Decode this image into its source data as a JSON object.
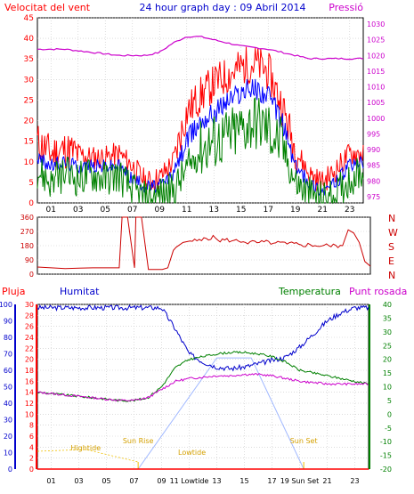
{
  "header": {
    "title": "24 hour graph day : 09 Abril 2014",
    "left_label": "Velocitat del vent",
    "right_label": "Pressió"
  },
  "bottom_header": {
    "pluja": "Pluja",
    "humitat": "Humitat",
    "temperatura": "Temperatura",
    "punt_rosada": "Punt rosada"
  },
  "colors": {
    "wind_max": "#ff0000",
    "wind_avg": "#0000ff",
    "wind_min": "#008000",
    "pressure": "#cc00cc",
    "humidity": "#0000cc",
    "temperature": "#008000",
    "dewpoint": "#cc00cc",
    "rain": "#ff0000",
    "direction": "#cc0000",
    "sun": "#a0b8ff",
    "tide": "#f0c000",
    "grid": "#c8c8c8"
  },
  "chart_data": [
    {
      "type": "line",
      "name": "wind-pressure",
      "x_ticks": [
        "01",
        "03",
        "05",
        "07",
        "09",
        "11",
        "13",
        "15",
        "17",
        "19",
        "21",
        "23"
      ],
      "left_axis": {
        "ticks": [
          0,
          5,
          10,
          15,
          20,
          25,
          30,
          35,
          40,
          45
        ],
        "ylim": [
          0,
          45
        ]
      },
      "right_axis": {
        "ticks": [
          975,
          980,
          985,
          990,
          995,
          1000,
          1005,
          1010,
          1015,
          1020,
          1025,
          1030
        ],
        "ylim": [
          973,
          1032
        ]
      },
      "x": [
        0,
        1,
        2,
        3,
        4,
        5,
        6,
        7,
        8,
        9,
        10,
        11,
        12,
        13,
        14,
        15,
        16,
        17,
        18,
        19,
        20,
        21,
        22,
        23,
        24
      ],
      "series": [
        {
          "key": "wind_max",
          "values": [
            15,
            12,
            13,
            12,
            11,
            11,
            12,
            9,
            5,
            6,
            10,
            22,
            26,
            29,
            31,
            33,
            34,
            32,
            24,
            13,
            7,
            5,
            8,
            12,
            12
          ]
        },
        {
          "key": "wind_avg",
          "values": [
            11,
            9,
            10,
            9,
            9,
            9,
            9,
            6,
            4,
            4,
            7,
            15,
            20,
            22,
            25,
            27,
            28,
            26,
            20,
            9,
            5,
            3,
            5,
            9,
            10
          ]
        },
        {
          "key": "wind_min",
          "values": [
            8,
            5,
            7,
            6,
            7,
            6,
            7,
            3,
            1,
            2,
            3,
            8,
            13,
            15,
            16,
            18,
            20,
            18,
            14,
            5,
            2,
            1,
            2,
            6,
            8
          ]
        },
        {
          "key": "pressure",
          "values": [
            1022,
            1022,
            1022,
            1021.5,
            1021,
            1020.5,
            1020,
            1020,
            1020,
            1021,
            1024,
            1026,
            1026,
            1025,
            1024,
            1023,
            1022.5,
            1022,
            1021,
            1020,
            1019,
            1019,
            1019,
            1019,
            1019
          ]
        }
      ]
    },
    {
      "type": "line",
      "name": "wind-direction",
      "left_axis": {
        "ticks": [
          0,
          90,
          180,
          270,
          360
        ],
        "ylim": [
          0,
          360
        ]
      },
      "compass": [
        "N",
        "W",
        "S",
        "E",
        "N"
      ],
      "x": [
        0,
        1,
        2,
        3,
        4,
        5,
        5.9,
        6.1,
        6.5,
        7,
        7.1,
        7.5,
        8,
        9,
        9.4,
        9.8,
        10,
        10.5,
        11,
        12,
        13,
        14,
        15,
        16,
        17,
        18,
        19,
        20,
        21,
        22,
        22.4,
        22.8,
        23.2,
        23.6,
        24
      ],
      "values": [
        45,
        40,
        35,
        38,
        40,
        40,
        40,
        360,
        360,
        40,
        360,
        360,
        30,
        30,
        40,
        150,
        170,
        200,
        210,
        230,
        215,
        210,
        200,
        200,
        195,
        190,
        185,
        180,
        180,
        180,
        280,
        260,
        200,
        80,
        50
      ]
    },
    {
      "type": "line",
      "name": "humidity-temperature-rain",
      "left_humidity_axis": {
        "ticks": [
          0,
          10,
          20,
          30,
          40,
          50,
          60,
          70,
          80,
          90,
          100
        ],
        "ylim": [
          0,
          100
        ]
      },
      "rain_axis": {
        "ticks": [
          0,
          2,
          4,
          6,
          8,
          10,
          12,
          14,
          16,
          18,
          20,
          22,
          24,
          26,
          28,
          30
        ],
        "ylim": [
          0,
          30
        ]
      },
      "right_axis": {
        "ticks": [
          -20,
          -15,
          -10,
          -5,
          0,
          5,
          10,
          15,
          20,
          25,
          30,
          35,
          40
        ],
        "ylim": [
          -20,
          40
        ]
      },
      "x_ticks": [
        "01",
        "03",
        "05",
        "07",
        "09",
        "11",
        "13",
        "15",
        "17",
        "19",
        "21",
        "23"
      ],
      "x": [
        0,
        1,
        2,
        3,
        4,
        5,
        6,
        7,
        8,
        9,
        10,
        11,
        12,
        13,
        14,
        15,
        16,
        17,
        18,
        19,
        20,
        21,
        22,
        23,
        24
      ],
      "series": [
        {
          "key": "humidity",
          "values": [
            98,
            98,
            98,
            98,
            98,
            98,
            98,
            98,
            98,
            98,
            85,
            70,
            65,
            62,
            61,
            62,
            64,
            66,
            68,
            74,
            82,
            90,
            95,
            98,
            98
          ]
        },
        {
          "key": "temperature",
          "values": [
            8,
            7.5,
            7,
            6.5,
            6,
            5.5,
            5,
            5,
            6,
            10,
            17,
            20,
            21,
            22,
            22.5,
            22.5,
            22,
            21,
            19,
            16,
            15,
            14,
            13,
            12,
            11
          ]
        },
        {
          "key": "dewpoint",
          "values": [
            8,
            7.5,
            7,
            6.5,
            6,
            5.5,
            5,
            5,
            6,
            9,
            12,
            13,
            13.5,
            14,
            14,
            14.5,
            14.5,
            14,
            13,
            12,
            11.5,
            11,
            11,
            11,
            11
          ]
        },
        {
          "key": "rain",
          "values": [
            0,
            0,
            0,
            0,
            0,
            0,
            0,
            0,
            0,
            0,
            0,
            0,
            0,
            0,
            0,
            0,
            0,
            0,
            0,
            0,
            0,
            0,
            0,
            0,
            0
          ]
        }
      ],
      "annotations": [
        {
          "text": "Hightide",
          "x": 3.5
        },
        {
          "text": "Sun Rise",
          "x": 7.3
        },
        {
          "text": "Lowtide",
          "x": 11.2
        },
        {
          "text": "Sun Set",
          "x": 19.3
        }
      ],
      "sun": {
        "rise": 7.3,
        "set": 19.3,
        "peak_start": 13,
        "peak_end": 15.5
      },
      "bottom_x_labels": [
        "01",
        "03",
        "05",
        "07",
        "09",
        "11 Lowtide",
        "13",
        "15",
        "17",
        "19 Sun Set",
        "21",
        "23"
      ]
    }
  ]
}
